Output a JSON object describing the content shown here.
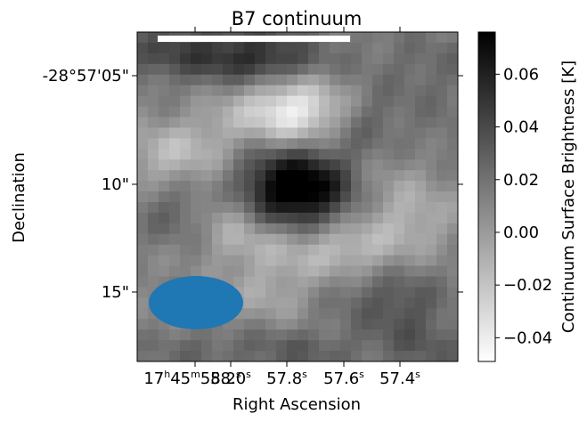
{
  "chart_data": {
    "type": "heatmap",
    "title": "B7 continuum",
    "xlabel": "Right Ascension",
    "ylabel": "Declination",
    "colorbar_label": "Continuum Surface Brightness [K]",
    "colormap": "gray_r",
    "vmin": -0.049,
    "vmax": 0.076,
    "colorbar_ticks": [
      "0.06",
      "0.04",
      "0.02",
      "0.00",
      "−0.02",
      "−0.04"
    ],
    "colorbar_tick_values": [
      0.06,
      0.04,
      0.02,
      0.0,
      -0.02,
      -0.04
    ],
    "ra_ticks": [
      {
        "h": "17",
        "m": "45",
        "s": "58.2"
      },
      {
        "s": "58.0"
      },
      {
        "s": "57.8"
      },
      {
        "s": "57.6"
      },
      {
        "s": "57.4"
      }
    ],
    "dec_ticks": [
      "-28°57'05\"",
      "10\"",
      "15\""
    ],
    "grid": false,
    "features": {
      "beam_ellipse_color": "#1f77b4",
      "scale_bar_color": "#ffffff"
    },
    "image": {
      "nx": 30,
      "ny": 31,
      "blobs": [
        {
          "x": 14.0,
          "y": 7.0,
          "sx": 3.5,
          "sy": 2.2,
          "a": -0.055
        },
        {
          "x": 14.5,
          "y": 14.2,
          "sx": 3.8,
          "sy": 2.6,
          "a": 0.078
        },
        {
          "x": 6.5,
          "y": 1.5,
          "sx": 7.0,
          "sy": 1.8,
          "a": 0.035
        },
        {
          "x": 11.5,
          "y": 2.5,
          "sx": 3.0,
          "sy": 1.4,
          "a": 0.018
        },
        {
          "x": 27.0,
          "y": 3.0,
          "sx": 4.0,
          "sy": 2.5,
          "a": 0.012
        },
        {
          "x": 21.0,
          "y": 8.0,
          "sx": 2.5,
          "sy": 2.0,
          "a": 0.018
        },
        {
          "x": 3.0,
          "y": 11.0,
          "sx": 3.5,
          "sy": 2.0,
          "a": -0.028
        },
        {
          "x": 23.5,
          "y": 14.5,
          "sx": 3.5,
          "sy": 2.8,
          "a": -0.025
        },
        {
          "x": 24.5,
          "y": 13.5,
          "sx": 3.0,
          "sy": 2.5,
          "a": 0.01
        },
        {
          "x": 18.5,
          "y": 20.0,
          "sx": 4.0,
          "sy": 2.0,
          "a": -0.03
        },
        {
          "x": 10.0,
          "y": 19.0,
          "sx": 3.0,
          "sy": 2.0,
          "a": -0.02
        },
        {
          "x": 3.0,
          "y": 16.5,
          "sx": 2.5,
          "sy": 2.0,
          "a": 0.015
        },
        {
          "x": 8.0,
          "y": 16.0,
          "sx": 2.0,
          "sy": 2.0,
          "a": -0.015
        },
        {
          "x": 20.0,
          "y": 24.0,
          "sx": 3.5,
          "sy": 2.0,
          "a": 0.01
        },
        {
          "x": 24.5,
          "y": 25.5,
          "sx": 3.0,
          "sy": 2.5,
          "a": 0.02
        },
        {
          "x": 26.0,
          "y": 17.5,
          "sx": 2.5,
          "sy": 2.0,
          "a": -0.012
        },
        {
          "x": 12.0,
          "y": 24.0,
          "sx": 3.0,
          "sy": 2.0,
          "a": -0.018
        },
        {
          "x": 14.0,
          "y": 29.5,
          "sx": 5.0,
          "sy": 1.5,
          "a": 0.018
        },
        {
          "x": 27.0,
          "y": 29.5,
          "sx": 3.0,
          "sy": 1.8,
          "a": 0.014
        },
        {
          "x": 4.0,
          "y": 29.5,
          "sx": 3.0,
          "sy": 1.5,
          "a": 0.01
        },
        {
          "x": 7.0,
          "y": 8.0,
          "sx": 2.0,
          "sy": 1.5,
          "a": -0.01
        },
        {
          "x": 28.0,
          "y": 9.0,
          "sx": 2.0,
          "sy": 2.0,
          "a": 0.008
        }
      ]
    }
  }
}
